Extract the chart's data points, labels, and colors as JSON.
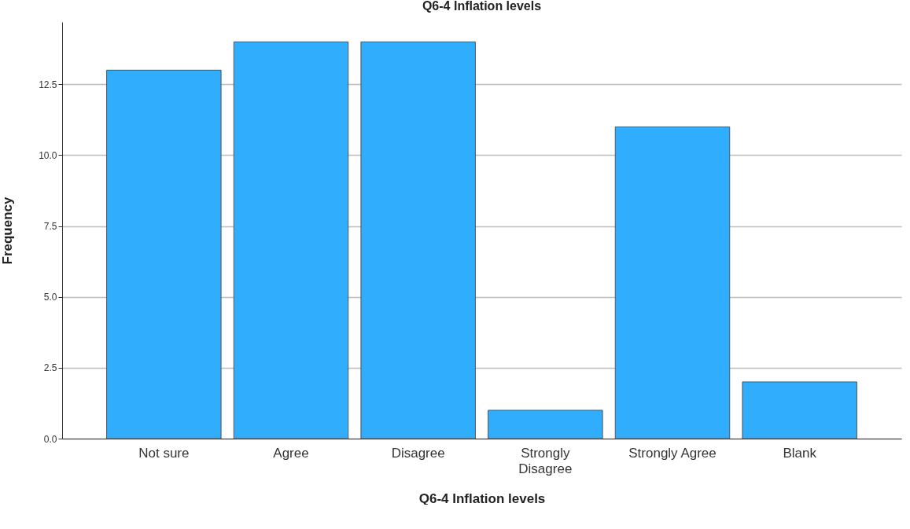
{
  "chart_data": {
    "type": "bar",
    "title": "Q6-4 Inflation levels",
    "xlabel": "Q6-4 Inflation levels",
    "ylabel": "Frequency",
    "categories": [
      "Not sure",
      "Agree",
      "Disagree",
      "Strongly Disagree",
      "Strongly Agree",
      "Blank"
    ],
    "values": [
      13,
      14,
      14,
      1,
      11,
      2
    ],
    "color": "#30adfc",
    "ylim": [
      0,
      14.7
    ],
    "yticks": [
      {
        "value": 0,
        "label": "0.0"
      },
      {
        "value": 2.5,
        "label": "2.5"
      },
      {
        "value": 5,
        "label": "5.0"
      },
      {
        "value": 7.5,
        "label": "7.5"
      },
      {
        "value": 10,
        "label": "10.0"
      },
      {
        "value": 12.5,
        "label": "12.5"
      }
    ],
    "grid": "y"
  }
}
